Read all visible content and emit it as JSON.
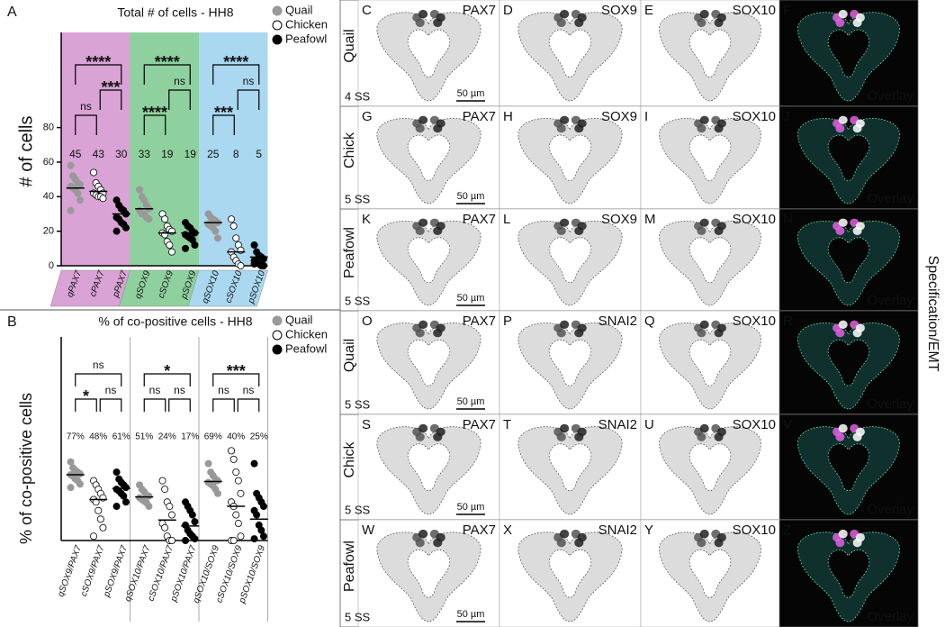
{
  "chart_data": [
    {
      "type": "strip",
      "panel_label": "A",
      "title": "Total # of cells - HH8",
      "ylabel": "# of cells",
      "ylim": [
        0,
        133
      ],
      "yticks": [
        0,
        20,
        40,
        60,
        80
      ],
      "groups": [
        {
          "background": "#d9a3d5",
          "categories": [
            "qPAX7",
            "cPAX7",
            "pPAX7"
          ]
        },
        {
          "background": "#8fd19e",
          "categories": [
            "qSOX9",
            "cSOX9",
            "pSOX9"
          ]
        },
        {
          "background": "#a9d8f0",
          "categories": [
            "qSOX10",
            "cSOX10",
            "pSOX10"
          ]
        }
      ],
      "series": [
        {
          "name": "Quail",
          "color": "#999999",
          "edgecolor": "#999999",
          "values": [
            45,
            33,
            25
          ],
          "points": [
            [
              58,
              52,
              50,
              48,
              47,
              46,
              45,
              44,
              42,
              38,
              32
            ],
            [
              44,
              40,
              38,
              35,
              33,
              32,
              30,
              30,
              28,
              27
            ],
            [
              30,
              28,
              27,
              26,
              25,
              24,
              23,
              22,
              20,
              16
            ]
          ]
        },
        {
          "name": "Chicken",
          "color": "#ffffff",
          "edgecolor": "#000000",
          "values": [
            43,
            19,
            8
          ],
          "points": [
            [
              54,
              48,
              46,
              44,
              42,
              42,
              41,
              40,
              40,
              39
            ],
            [
              30,
              27,
              23,
              21,
              20,
              19,
              18,
              14,
              12,
              8
            ],
            [
              27,
              23,
              16,
              12,
              9,
              8,
              5,
              3,
              1,
              0
            ]
          ]
        },
        {
          "name": "Peafowl",
          "color": "#000000",
          "edgecolor": "#000000",
          "values": [
            30,
            19,
            5
          ],
          "points": [
            [
              38,
              35,
              33,
              32,
              30,
              28,
              27,
              25,
              24,
              22,
              20
            ],
            [
              25,
              23,
              22,
              20,
              19,
              18,
              17,
              16,
              15,
              12,
              10
            ],
            [
              12,
              8,
              6,
              5,
              4,
              3,
              2,
              1,
              0,
              0,
              1
            ]
          ]
        }
      ],
      "brackets": [
        {
          "pair": [
            "qPAX7",
            "pPAX7"
          ],
          "label": "****"
        },
        {
          "pair": [
            "cPAX7",
            "pPAX7"
          ],
          "label": "***"
        },
        {
          "pair": [
            "qPAX7",
            "cPAX7"
          ],
          "label": "ns"
        },
        {
          "pair": [
            "qSOX9",
            "pSOX9"
          ],
          "label": "****"
        },
        {
          "pair": [
            "cSOX9",
            "pSOX9"
          ],
          "label": "ns"
        },
        {
          "pair": [
            "qSOX9",
            "cSOX9"
          ],
          "label": "****"
        },
        {
          "pair": [
            "qSOX10",
            "pSOX10"
          ],
          "label": "****"
        },
        {
          "pair": [
            "cSOX10",
            "pSOX10"
          ],
          "label": "ns"
        },
        {
          "pair": [
            "qSOX10",
            "cSOX10"
          ],
          "label": "***"
        }
      ]
    },
    {
      "type": "strip",
      "panel_label": "B",
      "title": "% of co-positive cells - HH8",
      "ylabel": "% of co-positive cells",
      "ylim": [
        0,
        234
      ],
      "groups": [
        {
          "categories": [
            "qSOX9/PAX7",
            "cSOX9/PAX7",
            "pSOX9/PAX7"
          ]
        },
        {
          "categories": [
            "qSOX10/PAX7",
            "cSOX10/PAX7",
            "pSOX10/PAX7"
          ]
        },
        {
          "categories": [
            "qSOX10/SOX9",
            "cSOX10/SOX9",
            "pSOX10/SOX9"
          ]
        }
      ],
      "series": [
        {
          "name": "Quail",
          "color": "#999999",
          "edgecolor": "#999999",
          "values": [
            77,
            51,
            69
          ],
          "value_labels": [
            "77%",
            "51%",
            "69%"
          ],
          "points": [
            [
              92,
              85,
              82,
              80,
              78,
              77,
              75,
              72,
              70,
              66,
              62
            ],
            [
              65,
              60,
              57,
              53,
              52,
              50,
              48,
              46,
              44,
              40
            ],
            [
              90,
              80,
              76,
              72,
              70,
              68,
              66,
              64,
              60,
              55
            ]
          ]
        },
        {
          "name": "Chicken",
          "color": "#ffffff",
          "edgecolor": "#000000",
          "values": [
            48,
            24,
            40
          ],
          "value_labels": [
            "48%",
            "24%",
            "40%"
          ],
          "points": [
            [
              70,
              65,
              60,
              55,
              50,
              48,
              45,
              35,
              25,
              15,
              5
            ],
            [
              70,
              60,
              45,
              40,
              30,
              20,
              15,
              5,
              0,
              0
            ],
            [
              105,
              95,
              80,
              70,
              55,
              45,
              40,
              30,
              20,
              5,
              0,
              0
            ]
          ]
        },
        {
          "name": "Peafowl",
          "color": "#000000",
          "edgecolor": "#000000",
          "values": [
            61,
            17,
            25
          ],
          "value_labels": [
            "61%",
            "17%",
            "25%"
          ],
          "points": [
            [
              80,
              72,
              68,
              65,
              62,
              60,
              58,
              55,
              52,
              45,
              40
            ],
            [
              45,
              40,
              35,
              30,
              22,
              18,
              12,
              8,
              5,
              2,
              0
            ],
            [
              90,
              55,
              50,
              45,
              40,
              35,
              30,
              18,
              12,
              5,
              2
            ]
          ]
        }
      ],
      "brackets": [
        {
          "pair": [
            "qSOX9/PAX7",
            "pSOX9/PAX7"
          ],
          "label": "ns"
        },
        {
          "pair": [
            "cSOX9/PAX7",
            "pSOX9/PAX7"
          ],
          "label": "ns"
        },
        {
          "pair": [
            "qSOX9/PAX7",
            "cSOX9/PAX7"
          ],
          "label": "*"
        },
        {
          "pair": [
            "qSOX10/PAX7",
            "pSOX10/PAX7"
          ],
          "label": "*"
        },
        {
          "pair": [
            "cSOX10/PAX7",
            "pSOX10/PAX7"
          ],
          "label": "ns"
        },
        {
          "pair": [
            "qSOX10/PAX7",
            "cSOX10/PAX7"
          ],
          "label": "ns"
        },
        {
          "pair": [
            "qSOX10/SOX9",
            "pSOX10/SOX9"
          ],
          "label": "***"
        },
        {
          "pair": [
            "cSOX10/SOX9",
            "pSOX10/SOX9"
          ],
          "label": "ns"
        },
        {
          "pair": [
            "qSOX10/SOX9",
            "cSOX10/SOX9"
          ],
          "label": "ns"
        }
      ]
    }
  ],
  "images": {
    "side_label": "Specification/EMT",
    "rows": [
      {
        "species": "Quail",
        "stage": "4 SS",
        "scale_bar": "50 µm",
        "panels": [
          {
            "letter": "C",
            "marker": "PAX7"
          },
          {
            "letter": "D",
            "marker": "SOX9"
          },
          {
            "letter": "E",
            "marker": "SOX10"
          },
          {
            "letter": "F",
            "marker": "Overlay"
          }
        ]
      },
      {
        "species": "Chick",
        "stage": "5 SS",
        "scale_bar": "50 µm",
        "panels": [
          {
            "letter": "G",
            "marker": "PAX7"
          },
          {
            "letter": "H",
            "marker": "SOX9"
          },
          {
            "letter": "I",
            "marker": "SOX10"
          },
          {
            "letter": "J",
            "marker": "Overlay"
          }
        ]
      },
      {
        "species": "Peafowl",
        "stage": "5 SS",
        "scale_bar": "50 µm",
        "panels": [
          {
            "letter": "K",
            "marker": "PAX7"
          },
          {
            "letter": "L",
            "marker": "SOX9"
          },
          {
            "letter": "M",
            "marker": "SOX10"
          },
          {
            "letter": "N",
            "marker": "Overlay"
          }
        ]
      },
      {
        "species": "Quail",
        "stage": "5 SS",
        "scale_bar": "50 µm",
        "panels": [
          {
            "letter": "O",
            "marker": "PAX7"
          },
          {
            "letter": "P",
            "marker": "SNAI2"
          },
          {
            "letter": "Q",
            "marker": "SOX10"
          },
          {
            "letter": "R",
            "marker": "Overlay"
          }
        ]
      },
      {
        "species": "Chick",
        "stage": "5 SS",
        "scale_bar": "50 µm",
        "panels": [
          {
            "letter": "S",
            "marker": "PAX7"
          },
          {
            "letter": "T",
            "marker": "SNAI2"
          },
          {
            "letter": "U",
            "marker": "SOX10"
          },
          {
            "letter": "V",
            "marker": "Overlay"
          }
        ]
      },
      {
        "species": "Peafowl",
        "stage": "5 SS",
        "scale_bar": "50 µm",
        "panels": [
          {
            "letter": "W",
            "marker": "PAX7"
          },
          {
            "letter": "X",
            "marker": "SNAI2"
          },
          {
            "letter": "Y",
            "marker": "SOX10"
          },
          {
            "letter": "Z",
            "marker": "Overlay"
          }
        ]
      }
    ]
  }
}
